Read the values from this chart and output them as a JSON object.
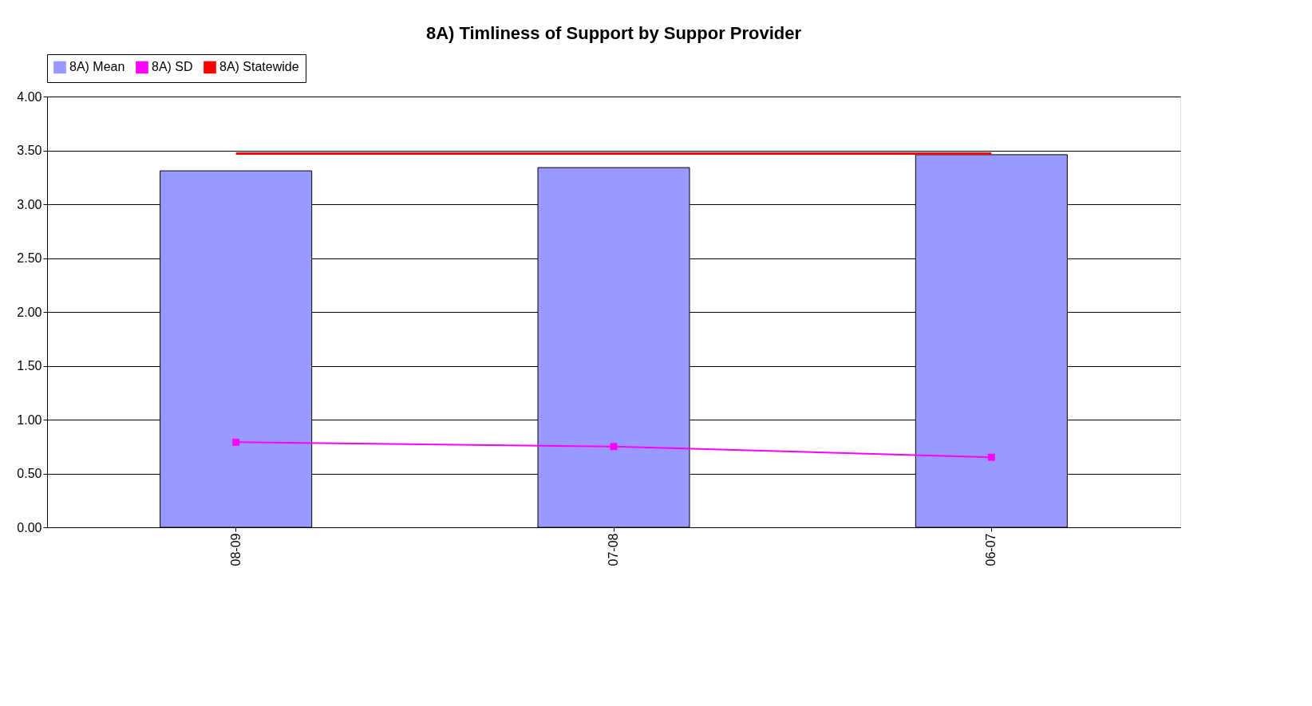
{
  "chart_data": {
    "type": "bar",
    "title": "8A) Timliness of Support by Suppor Provider",
    "categories": [
      "08-09",
      "07-08",
      "06-07"
    ],
    "series": [
      {
        "name": "8A) Mean",
        "color": "#9999ff",
        "values": [
          3.31,
          3.34,
          3.46
        ]
      },
      {
        "name": "8A) SD",
        "type": "line",
        "color": "#ff00ff",
        "marker": "square",
        "values": [
          0.79,
          0.75,
          0.65
        ]
      },
      {
        "name": "8A) Statewide",
        "type": "line",
        "color": "#ff0000",
        "marker": "none",
        "values": [
          3.47,
          3.47,
          3.47
        ]
      }
    ],
    "ylim": [
      0,
      4
    ],
    "yticks": [
      {
        "value": 0,
        "label": "0.00"
      },
      {
        "value": 0.5,
        "label": "0.50"
      },
      {
        "value": 1,
        "label": "1.00"
      },
      {
        "value": 1.5,
        "label": "1.50"
      },
      {
        "value": 2,
        "label": "2.00"
      },
      {
        "value": 2.5,
        "label": "2.50"
      },
      {
        "value": 3,
        "label": "3.00"
      },
      {
        "value": 3.5,
        "label": "3.50"
      },
      {
        "value": 4,
        "label": "4.00"
      }
    ],
    "grid": "y",
    "legend": "top"
  }
}
